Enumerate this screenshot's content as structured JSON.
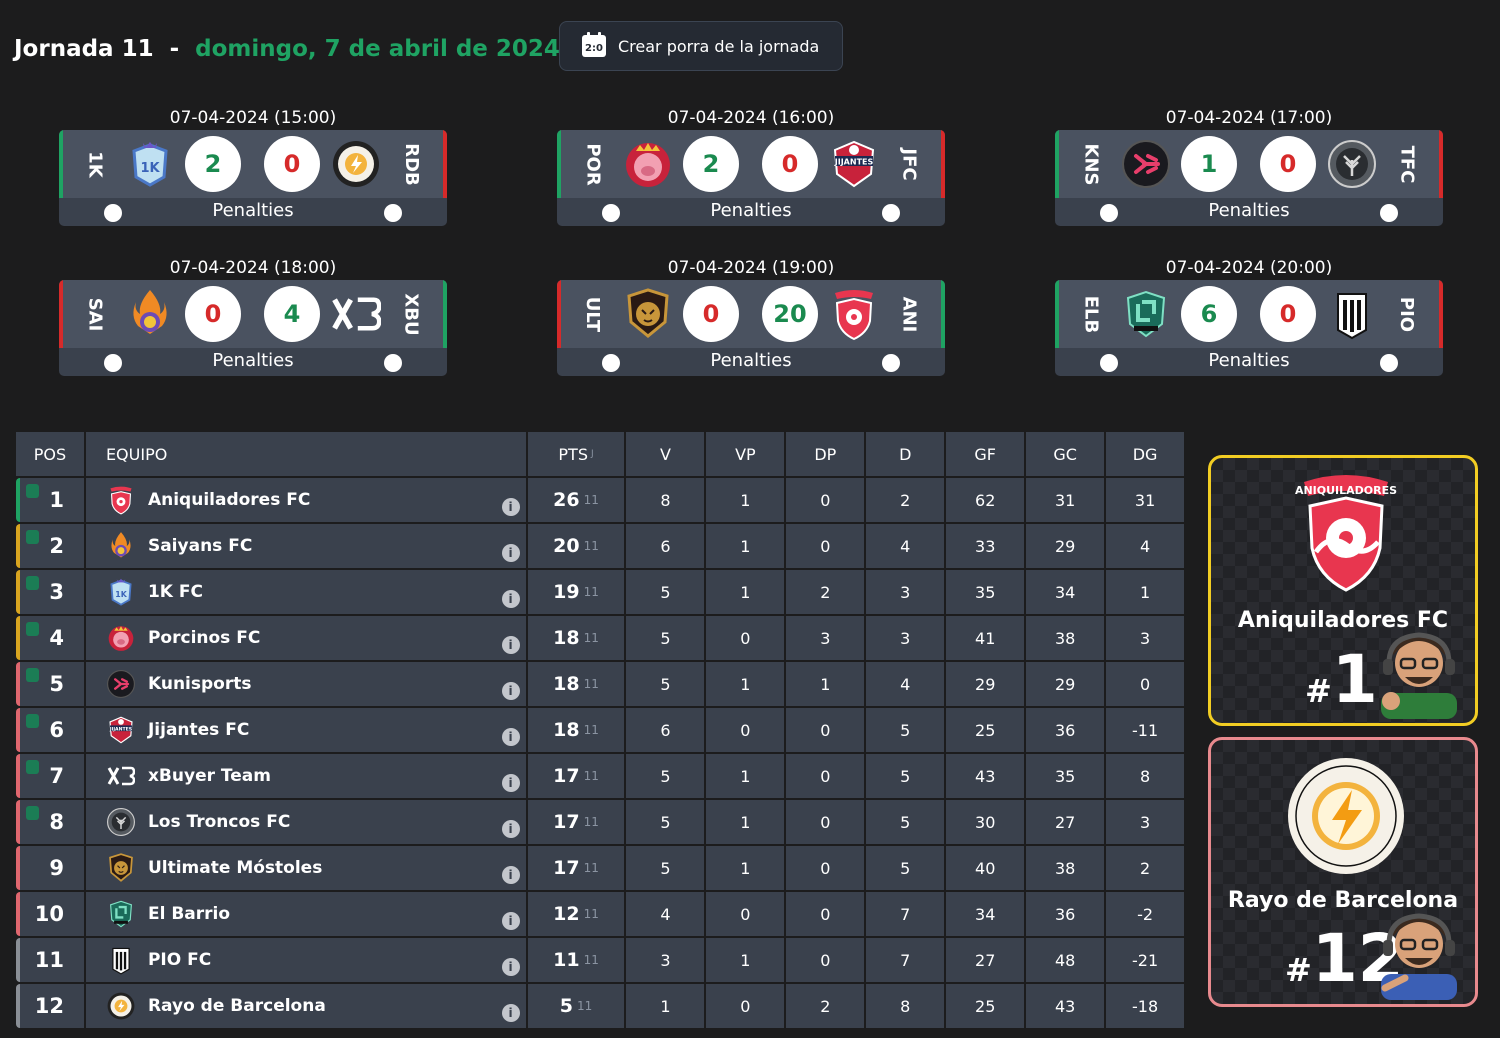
{
  "header": {
    "jornada": "Jornada 11",
    "separator": "-",
    "date": "domingo, 7 de abril de 2024",
    "porra_button": "Crear porra de la jornada",
    "porra_icon_text": "2:0"
  },
  "colors": {
    "accent_green": "#1fa363",
    "loss_red": "#d62a2a",
    "gold": "#f2cd23",
    "salmon": "#e88a8e",
    "panel": "#3a414d"
  },
  "penalties_label": "Penalties",
  "matches": [
    {
      "datetime": "07-04-2024 (15:00)",
      "home": "1K",
      "away": "RDB",
      "home_score": "2",
      "away_score": "0"
    },
    {
      "datetime": "07-04-2024 (16:00)",
      "home": "POR",
      "away": "JFC",
      "home_score": "2",
      "away_score": "0"
    },
    {
      "datetime": "07-04-2024 (17:00)",
      "home": "KNS",
      "away": "TFC",
      "home_score": "1",
      "away_score": "0"
    },
    {
      "datetime": "07-04-2024 (18:00)",
      "home": "SAI",
      "away": "XBU",
      "home_score": "0",
      "away_score": "4"
    },
    {
      "datetime": "07-04-2024 (19:00)",
      "home": "ULT",
      "away": "ANI",
      "home_score": "0",
      "away_score": "20"
    },
    {
      "datetime": "07-04-2024 (20:00)",
      "home": "ELB",
      "away": "PIO",
      "home_score": "6",
      "away_score": "0"
    }
  ],
  "table": {
    "headers": {
      "pos": "POS",
      "team": "EQUIPO",
      "pts": "PTS",
      "j": "J",
      "v": "V",
      "vp": "VP",
      "dp": "DP",
      "d": "D",
      "gf": "GF",
      "gc": "GC",
      "dg": "DG"
    },
    "rows": [
      {
        "pos": "1",
        "team": "Aniquiladores FC",
        "pts": "26",
        "j": "11",
        "v": "8",
        "vp": "1",
        "dp": "0",
        "d": "2",
        "gf": "62",
        "gc": "31",
        "dg": "31"
      },
      {
        "pos": "2",
        "team": "Saiyans FC",
        "pts": "20",
        "j": "11",
        "v": "6",
        "vp": "1",
        "dp": "0",
        "d": "4",
        "gf": "33",
        "gc": "29",
        "dg": "4"
      },
      {
        "pos": "3",
        "team": "1K FC",
        "pts": "19",
        "j": "11",
        "v": "5",
        "vp": "1",
        "dp": "2",
        "d": "3",
        "gf": "35",
        "gc": "34",
        "dg": "1"
      },
      {
        "pos": "4",
        "team": "Porcinos FC",
        "pts": "18",
        "j": "11",
        "v": "5",
        "vp": "0",
        "dp": "3",
        "d": "3",
        "gf": "41",
        "gc": "38",
        "dg": "3"
      },
      {
        "pos": "5",
        "team": "Kunisports",
        "pts": "18",
        "j": "11",
        "v": "5",
        "vp": "1",
        "dp": "1",
        "d": "4",
        "gf": "29",
        "gc": "29",
        "dg": "0"
      },
      {
        "pos": "6",
        "team": "Jijantes FC",
        "pts": "18",
        "j": "11",
        "v": "6",
        "vp": "0",
        "dp": "0",
        "d": "5",
        "gf": "25",
        "gc": "36",
        "dg": "-11"
      },
      {
        "pos": "7",
        "team": "xBuyer Team",
        "pts": "17",
        "j": "11",
        "v": "5",
        "vp": "1",
        "dp": "0",
        "d": "5",
        "gf": "43",
        "gc": "35",
        "dg": "8"
      },
      {
        "pos": "8",
        "team": "Los Troncos FC",
        "pts": "17",
        "j": "11",
        "v": "5",
        "vp": "1",
        "dp": "0",
        "d": "5",
        "gf": "30",
        "gc": "27",
        "dg": "3"
      },
      {
        "pos": "9",
        "team": "Ultimate Móstoles",
        "pts": "17",
        "j": "11",
        "v": "5",
        "vp": "1",
        "dp": "0",
        "d": "5",
        "gf": "40",
        "gc": "38",
        "dg": "2"
      },
      {
        "pos": "10",
        "team": "El Barrio",
        "pts": "12",
        "j": "11",
        "v": "4",
        "vp": "0",
        "dp": "0",
        "d": "7",
        "gf": "34",
        "gc": "36",
        "dg": "-2"
      },
      {
        "pos": "11",
        "team": "PIO FC",
        "pts": "11",
        "j": "11",
        "v": "3",
        "vp": "1",
        "dp": "0",
        "d": "7",
        "gf": "27",
        "gc": "48",
        "dg": "-21"
      },
      {
        "pos": "12",
        "team": "Rayo de Barcelona",
        "pts": "5",
        "j": "11",
        "v": "1",
        "vp": "0",
        "dp": "2",
        "d": "8",
        "gf": "25",
        "gc": "43",
        "dg": "-18"
      }
    ]
  },
  "leader": {
    "name": "Aniquiladores FC",
    "hash": "#",
    "rank": "1",
    "logo_text": "ANIQUILADORES"
  },
  "last": {
    "name": "Rayo de Barcelona",
    "hash": "#",
    "rank": "12"
  }
}
